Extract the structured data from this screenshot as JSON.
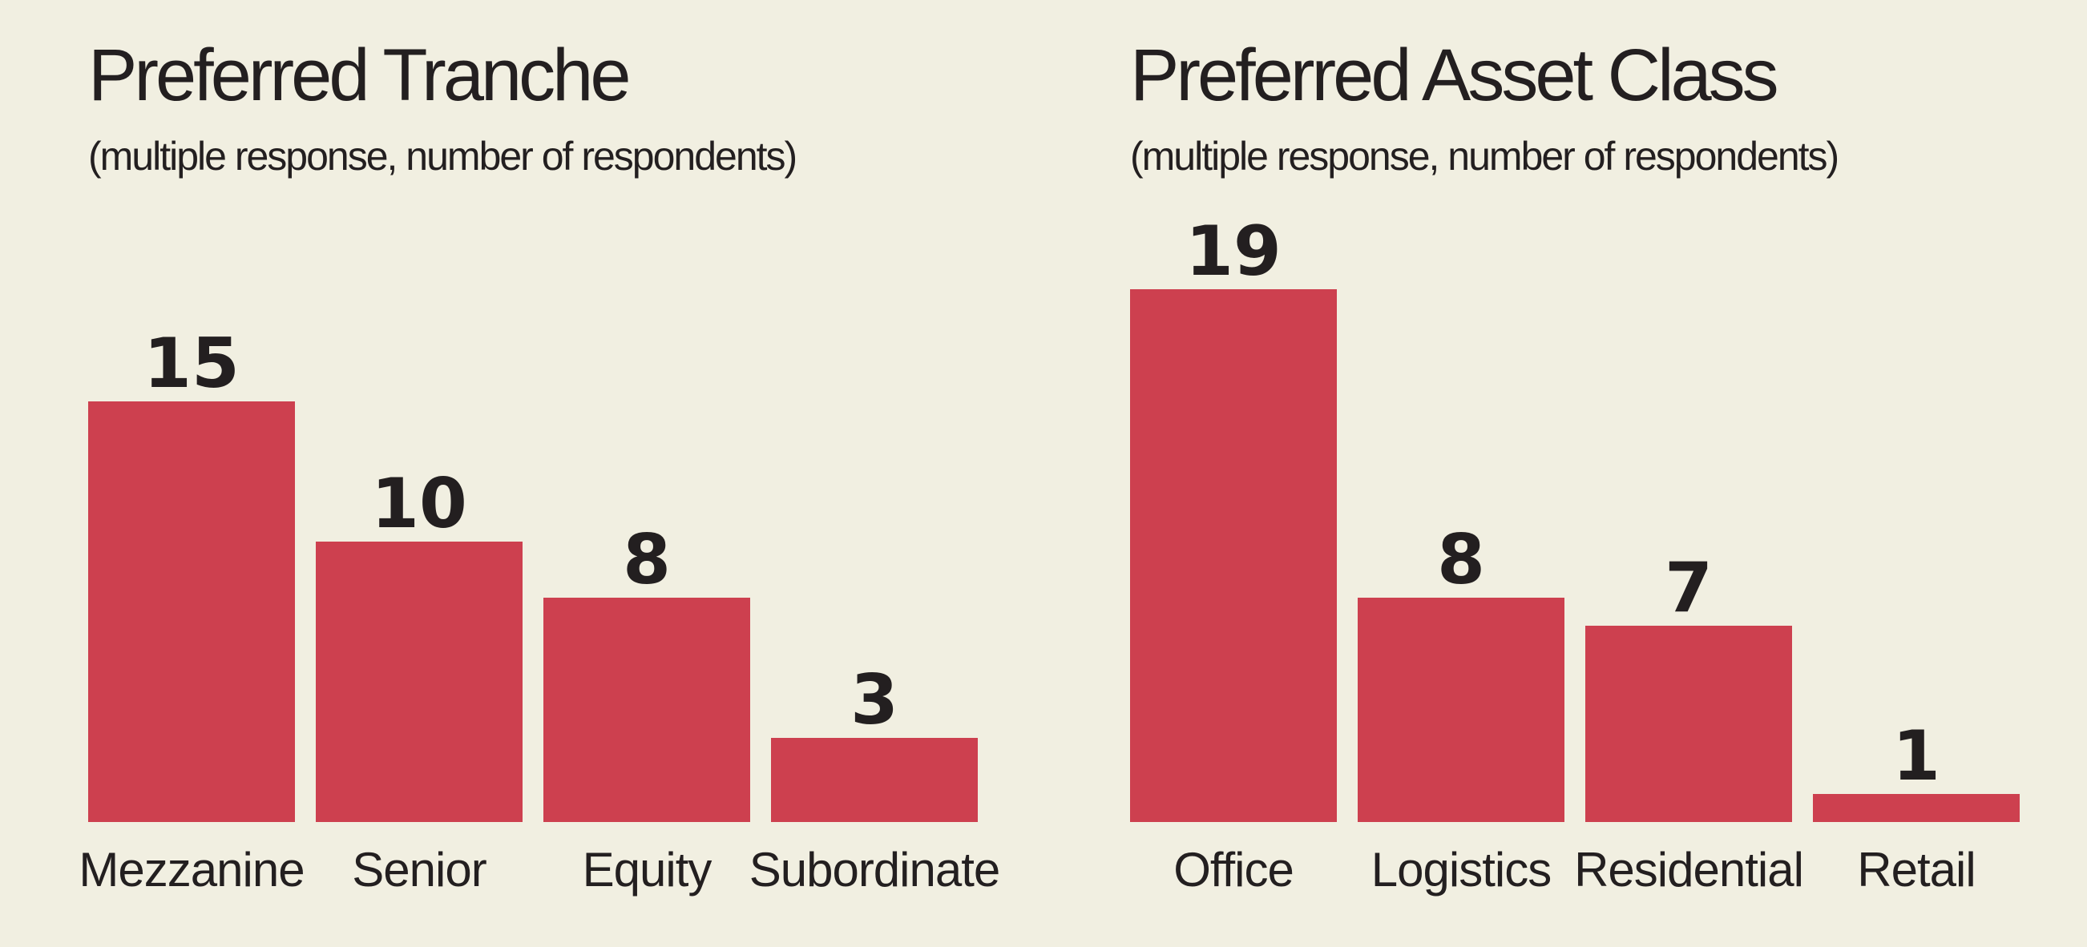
{
  "chart_data": [
    {
      "type": "bar",
      "title": "Preferred Tranche",
      "subtitle": "(multiple response, number of respondents)",
      "categories": [
        "Mezzanine",
        "Senior",
        "Equity",
        "Subordinate"
      ],
      "values": [
        15,
        10,
        8,
        3
      ],
      "color": "#cd404f"
    },
    {
      "type": "bar",
      "title": "Preferred Asset Class",
      "subtitle": "(multiple response, number of respondents)",
      "categories": [
        "Office",
        "Logistics",
        "Residential",
        "Retail"
      ],
      "values": [
        19,
        8,
        7,
        1
      ],
      "color": "#cd404f"
    }
  ]
}
